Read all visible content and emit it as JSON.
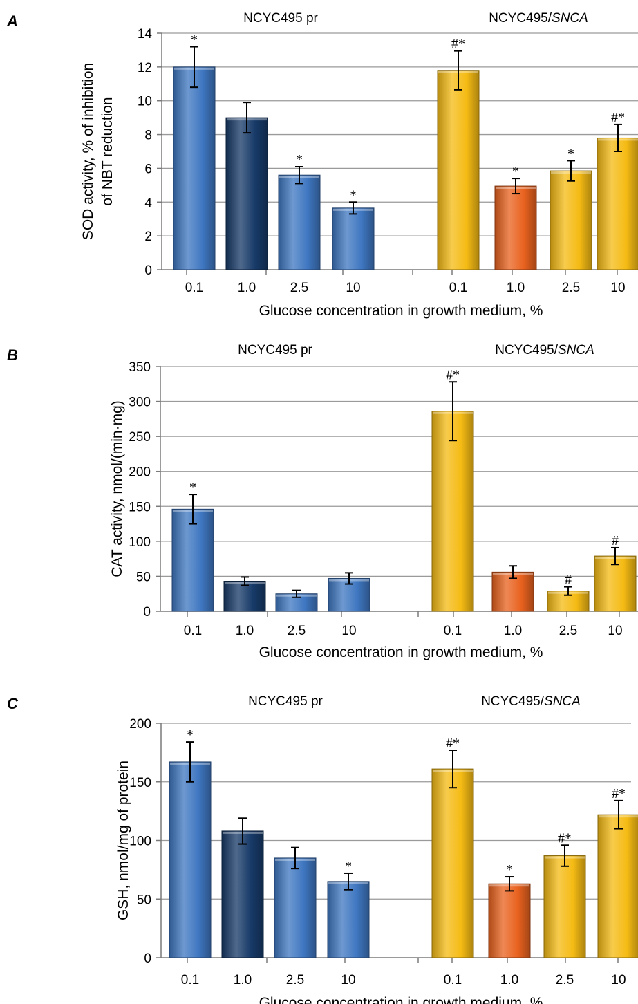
{
  "colors": {
    "blue": "#3f77c1",
    "dark_blue": "#173a68",
    "yellow": "#f5bb14",
    "orange": "#e9621f"
  },
  "chart_data": [
    {
      "type": "bar",
      "panel": "A",
      "groups": [
        "NCYC495 pr",
        "NCYC495/SNCA"
      ],
      "categories": [
        "0.1",
        "1.0",
        "2.5",
        "10"
      ],
      "series": [
        {
          "values": [
            12.0,
            9.0,
            5.6,
            3.65
          ],
          "errors": [
            1.2,
            0.9,
            0.5,
            0.35
          ],
          "marks": [
            "*",
            "",
            "*",
            "*"
          ],
          "colors": [
            "blue",
            "dark_blue",
            "blue",
            "blue"
          ]
        },
        {
          "values": [
            11.8,
            4.95,
            5.85,
            7.8
          ],
          "errors": [
            1.15,
            0.45,
            0.6,
            0.8
          ],
          "marks": [
            "#*",
            "*",
            "*",
            "#*"
          ],
          "colors": [
            "yellow",
            "orange",
            "yellow",
            "yellow"
          ]
        }
      ],
      "xlabel": "Glucose concentration in growth medium, %",
      "ylabel_lines": [
        "SOD activity, % of inhibition",
        "of NBT reduction"
      ],
      "ylim": [
        0,
        14
      ],
      "yticks": [
        "0",
        "2",
        "4",
        "6",
        "8",
        "10",
        "12",
        "14"
      ],
      "grid": true
    },
    {
      "type": "bar",
      "panel": "B",
      "groups": [
        "NCYC495 pr",
        "NCYC495/SNCA"
      ],
      "categories": [
        "0.1",
        "1.0",
        "2.5",
        "10"
      ],
      "series": [
        {
          "values": [
            146,
            43,
            25,
            47
          ],
          "errors": [
            21,
            6,
            5,
            8
          ],
          "marks": [
            "*",
            "",
            "",
            ""
          ],
          "colors": [
            "blue",
            "dark_blue",
            "blue",
            "blue"
          ]
        },
        {
          "values": [
            286,
            56,
            29,
            79
          ],
          "errors": [
            42,
            9,
            6,
            12
          ],
          "marks": [
            "#*",
            "",
            "#",
            "#"
          ],
          "colors": [
            "yellow",
            "orange",
            "yellow",
            "yellow"
          ]
        }
      ],
      "xlabel": "Glucose concentration in growth medium, %",
      "ylabel_lines": [
        "CAT activity, nmol/(min·mg)"
      ],
      "ylim": [
        0,
        350
      ],
      "yticks": [
        "0",
        "50",
        "100",
        "150",
        "200",
        "250",
        "300",
        "350"
      ],
      "grid": true
    },
    {
      "type": "bar",
      "panel": "C",
      "groups": [
        "NCYC495 pr",
        "NCYC495/SNCA"
      ],
      "categories": [
        "0.1",
        "1.0",
        "2.5",
        "10"
      ],
      "series": [
        {
          "values": [
            167,
            108,
            85,
            65
          ],
          "errors": [
            17,
            11,
            9,
            7
          ],
          "marks": [
            "*",
            "",
            "",
            "*"
          ],
          "colors": [
            "blue",
            "dark_blue",
            "blue",
            "blue"
          ]
        },
        {
          "values": [
            161,
            63,
            87,
            122
          ],
          "errors": [
            16,
            6,
            9,
            12
          ],
          "marks": [
            "#*",
            "*",
            "#*",
            "#*"
          ],
          "colors": [
            "yellow",
            "orange",
            "yellow",
            "yellow"
          ]
        }
      ],
      "xlabel": "Glucose concentration in growth medium, %",
      "ylabel_lines": [
        "GSH, nmol/mg of protein"
      ],
      "ylim": [
        0,
        200
      ],
      "yticks": [
        "0",
        "50",
        "100",
        "150",
        "200"
      ],
      "grid": true
    }
  ]
}
